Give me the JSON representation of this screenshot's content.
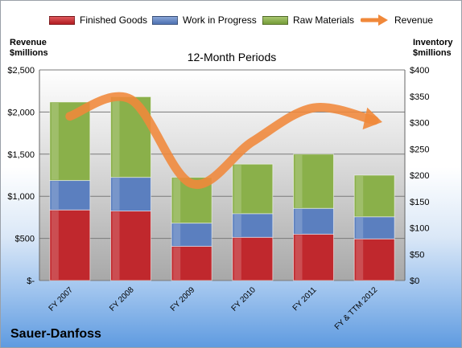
{
  "chart_data": {
    "type": "bar",
    "stacked": true,
    "company": "Sauer-Danfoss",
    "subtitle": "12-Month Periods",
    "left_axis_title": [
      "Revenue",
      "$millions"
    ],
    "right_axis_title": [
      "Inventory",
      "$millions"
    ],
    "categories": [
      "FY 2007",
      "FY 2008",
      "FY 2009",
      "FY 2010",
      "FY 2011",
      "FY & TTM 2012"
    ],
    "series": [
      {
        "name": "Finished Goods",
        "axis": "right",
        "color": "#c0282d",
        "values": [
          134,
          132,
          65,
          82,
          88,
          79
        ]
      },
      {
        "name": "Work in Progress",
        "axis": "right",
        "color": "#5b7fbf",
        "values": [
          56,
          64,
          44,
          45,
          49,
          42
        ]
      },
      {
        "name": "Raw Materials",
        "axis": "right",
        "color": "#8ab04a",
        "values": [
          149,
          153,
          87,
          94,
          103,
          79
        ]
      },
      {
        "name": "Revenue",
        "axis": "left",
        "type": "line",
        "color": "#f0883a",
        "values": [
          1950,
          2150,
          1150,
          1650,
          2050,
          1900
        ]
      }
    ],
    "left_axis": {
      "min": 0,
      "max": 2500,
      "step": 500,
      "tick_labels": [
        "$-",
        "$500",
        "$1,000",
        "$1,500",
        "$2,000",
        "$2,500"
      ]
    },
    "right_axis": {
      "min": 0,
      "max": 400,
      "step": 50,
      "tick_labels": [
        "$0",
        "$50",
        "$100",
        "$150",
        "$200",
        "$250",
        "$300",
        "$350",
        "$400"
      ]
    },
    "grid": true,
    "legend_position": "top"
  }
}
